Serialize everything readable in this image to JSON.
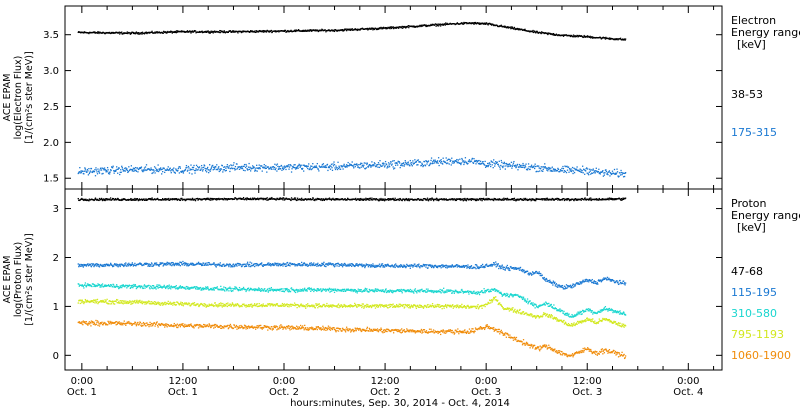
{
  "chart_data": {
    "type": "scatter",
    "xlabel": "hours:minutes, Sep. 30, 2014 - Oct.  4, 2014",
    "x_ticks": [
      {
        "hour": 0,
        "time": "0:00",
        "day": "Oct. 1"
      },
      {
        "hour": 12,
        "time": "12:00",
        "day": "Oct. 1"
      },
      {
        "hour": 24,
        "time": "0:00",
        "day": "Oct. 2"
      },
      {
        "hour": 36,
        "time": "12:00",
        "day": "Oct. 2"
      },
      {
        "hour": 48,
        "time": "0:00",
        "day": "Oct. 3"
      },
      {
        "hour": 60,
        "time": "12:00",
        "day": "Oct. 3"
      },
      {
        "hour": 72,
        "time": "0:00",
        "day": "Oct. 4"
      }
    ],
    "x_range_hours": [
      -2,
      76
    ],
    "data_end_hour": 64.5,
    "panels": [
      {
        "id": "electron",
        "ylabel_lines": [
          "ACE EPAM",
          "log(Electron Flux)",
          "[1/(cm²s ster MeV)]"
        ],
        "ylim": [
          1.35,
          3.9
        ],
        "yticks": [
          1.5,
          2.0,
          2.5,
          3.0,
          3.5
        ],
        "ytick_labels": [
          "1.5",
          "2.0",
          "2.5",
          "3.0",
          "3.5"
        ],
        "legend_title": [
          "Electron",
          "Energy ranges",
          "[keV]"
        ],
        "series": [
          {
            "name": "38-53",
            "color": "#000000",
            "profile": [
              [
                -0.5,
                3.54
              ],
              [
                6,
                3.53
              ],
              [
                12,
                3.55
              ],
              [
                18,
                3.55
              ],
              [
                24,
                3.56
              ],
              [
                30,
                3.57
              ],
              [
                36,
                3.6
              ],
              [
                40,
                3.63
              ],
              [
                44,
                3.66
              ],
              [
                46,
                3.67
              ],
              [
                48,
                3.66
              ],
              [
                51,
                3.6
              ],
              [
                54,
                3.54
              ],
              [
                57,
                3.5
              ],
              [
                60,
                3.48
              ],
              [
                62,
                3.46
              ],
              [
                64.5,
                3.44
              ]
            ],
            "noise": 0.012
          },
          {
            "name": "175-315",
            "color": "#1a78d2",
            "profile": [
              [
                -0.5,
                1.6
              ],
              [
                6,
                1.63
              ],
              [
                12,
                1.63
              ],
              [
                18,
                1.66
              ],
              [
                24,
                1.66
              ],
              [
                30,
                1.67
              ],
              [
                36,
                1.7
              ],
              [
                40,
                1.72
              ],
              [
                44,
                1.75
              ],
              [
                46,
                1.75
              ],
              [
                48,
                1.71
              ],
              [
                51,
                1.68
              ],
              [
                54,
                1.66
              ],
              [
                57,
                1.62
              ],
              [
                60,
                1.62
              ],
              [
                62,
                1.58
              ],
              [
                64.5,
                1.57
              ]
            ],
            "noise": 0.045
          }
        ]
      },
      {
        "id": "proton",
        "ylabel_lines": [
          "ACE EPAM",
          "log(Proton Flux)",
          "[1/(cm²s ster MeV)]"
        ],
        "ylim": [
          -0.3,
          3.4
        ],
        "yticks": [
          0,
          1,
          2,
          3
        ],
        "ytick_labels": [
          "0",
          "1",
          "2",
          "3"
        ],
        "legend_title": [
          "Proton",
          "Energy ranges",
          "[keV]"
        ],
        "series": [
          {
            "name": "47-68",
            "color": "#000000",
            "profile": [
              [
                -0.5,
                3.2
              ],
              [
                10,
                3.2
              ],
              [
                20,
                3.21
              ],
              [
                30,
                3.2
              ],
              [
                40,
                3.2
              ],
              [
                50,
                3.2
              ],
              [
                60,
                3.2
              ],
              [
                64.5,
                3.21
              ]
            ],
            "noise": 0.02
          },
          {
            "name": "115-195",
            "color": "#1a78d2",
            "profile": [
              [
                -0.5,
                1.85
              ],
              [
                6,
                1.87
              ],
              [
                12,
                1.88
              ],
              [
                18,
                1.86
              ],
              [
                24,
                1.87
              ],
              [
                30,
                1.87
              ],
              [
                36,
                1.84
              ],
              [
                42,
                1.84
              ],
              [
                47,
                1.82
              ],
              [
                49,
                1.87
              ],
              [
                50,
                1.8
              ],
              [
                52,
                1.78
              ],
              [
                53,
                1.68
              ],
              [
                54,
                1.72
              ],
              [
                55,
                1.55
              ],
              [
                57,
                1.4
              ],
              [
                58,
                1.42
              ],
              [
                60,
                1.55
              ],
              [
                61,
                1.5
              ],
              [
                62,
                1.58
              ],
              [
                64.5,
                1.47
              ]
            ],
            "noise": 0.035
          },
          {
            "name": "310-580",
            "color": "#19d6cf",
            "profile": [
              [
                -0.5,
                1.45
              ],
              [
                6,
                1.42
              ],
              [
                12,
                1.4
              ],
              [
                18,
                1.36
              ],
              [
                24,
                1.35
              ],
              [
                30,
                1.35
              ],
              [
                36,
                1.33
              ],
              [
                42,
                1.33
              ],
              [
                47,
                1.3
              ],
              [
                49,
                1.35
              ],
              [
                50,
                1.25
              ],
              [
                52,
                1.22
              ],
              [
                54,
                1.0
              ],
              [
                55,
                1.08
              ],
              [
                57,
                0.9
              ],
              [
                58,
                0.8
              ],
              [
                60,
                0.95
              ],
              [
                61,
                0.88
              ],
              [
                62,
                0.97
              ],
              [
                64.5,
                0.85
              ]
            ],
            "noise": 0.035
          },
          {
            "name": "795-1193",
            "color": "#d2e81e",
            "profile": [
              [
                -0.5,
                1.12
              ],
              [
                6,
                1.1
              ],
              [
                12,
                1.06
              ],
              [
                18,
                1.04
              ],
              [
                24,
                1.04
              ],
              [
                30,
                1.02
              ],
              [
                36,
                1.02
              ],
              [
                42,
                1.02
              ],
              [
                47,
                1.0
              ],
              [
                48,
                1.05
              ],
              [
                49,
                1.18
              ],
              [
                50,
                0.98
              ],
              [
                52,
                0.9
              ],
              [
                54,
                0.8
              ],
              [
                55,
                0.85
              ],
              [
                57,
                0.7
              ],
              [
                58,
                0.62
              ],
              [
                60,
                0.75
              ],
              [
                61,
                0.68
              ],
              [
                62,
                0.75
              ],
              [
                64.5,
                0.6
              ]
            ],
            "noise": 0.035
          },
          {
            "name": "1060-1900",
            "color": "#f08c0a",
            "profile": [
              [
                -0.5,
                0.68
              ],
              [
                6,
                0.66
              ],
              [
                12,
                0.62
              ],
              [
                18,
                0.6
              ],
              [
                24,
                0.58
              ],
              [
                30,
                0.55
              ],
              [
                36,
                0.52
              ],
              [
                42,
                0.5
              ],
              [
                46,
                0.5
              ],
              [
                48,
                0.6
              ],
              [
                49,
                0.55
              ],
              [
                50,
                0.45
              ],
              [
                52,
                0.3
              ],
              [
                54,
                0.15
              ],
              [
                55,
                0.2
              ],
              [
                57,
                0.05
              ],
              [
                58,
                0.0
              ],
              [
                60,
                0.15
              ],
              [
                61,
                0.05
              ],
              [
                62,
                0.12
              ],
              [
                64.5,
                0.0
              ]
            ],
            "noise": 0.04
          }
        ]
      }
    ]
  }
}
